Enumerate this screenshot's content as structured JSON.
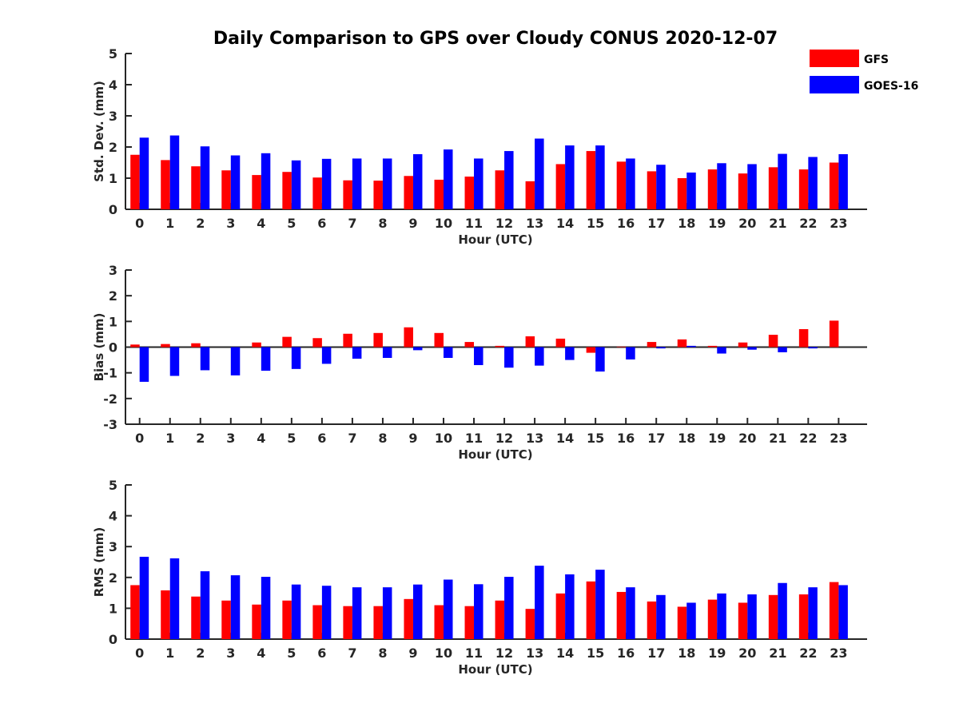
{
  "title": "Daily Comparison to GPS over Cloudy CONUS 2020-12-07",
  "legend": {
    "placement": "top-right",
    "entries": [
      {
        "name": "GFS",
        "color": "#ff0000"
      },
      {
        "name": "GOES-16",
        "color": "#0000ff"
      }
    ]
  },
  "chart_data": [
    {
      "type": "bar",
      "xlabel": "Hour (UTC)",
      "ylabel": "Std. Dev. (mm)",
      "ylim": [
        0,
        5
      ],
      "yticks": [
        "0",
        "1",
        "2",
        "3",
        "4",
        "5"
      ],
      "categories": [
        "0",
        "1",
        "2",
        "3",
        "4",
        "5",
        "6",
        "7",
        "8",
        "9",
        "10",
        "11",
        "12",
        "13",
        "14",
        "15",
        "16",
        "17",
        "18",
        "19",
        "20",
        "21",
        "22",
        "23"
      ],
      "series": [
        {
          "name": "GFS",
          "color": "#ff0000",
          "values": [
            1.75,
            1.58,
            1.38,
            1.25,
            1.1,
            1.2,
            1.02,
            0.93,
            0.92,
            1.07,
            0.95,
            1.05,
            1.25,
            0.9,
            1.45,
            1.87,
            1.53,
            1.22,
            1.0,
            1.28,
            1.15,
            1.35,
            1.28,
            1.5
          ]
        },
        {
          "name": "GOES-16",
          "color": "#0000ff",
          "values": [
            2.3,
            2.37,
            2.02,
            1.73,
            1.8,
            1.57,
            1.62,
            1.63,
            1.63,
            1.77,
            1.92,
            1.63,
            1.87,
            2.27,
            2.05,
            2.05,
            1.63,
            1.43,
            1.18,
            1.48,
            1.45,
            1.78,
            1.68,
            1.77
          ]
        }
      ]
    },
    {
      "type": "bar",
      "xlabel": "Hour (UTC)",
      "ylabel": "Bias (mm)",
      "ylim": [
        -3,
        3
      ],
      "yticks": [
        "-3",
        "-2",
        "-1",
        "0",
        "1",
        "2",
        "3"
      ],
      "categories": [
        "0",
        "1",
        "2",
        "3",
        "4",
        "5",
        "6",
        "7",
        "8",
        "9",
        "10",
        "11",
        "12",
        "13",
        "14",
        "15",
        "16",
        "17",
        "18",
        "19",
        "20",
        "21",
        "22",
        "23"
      ],
      "series": [
        {
          "name": "GFS",
          "color": "#ff0000",
          "values": [
            0.1,
            0.12,
            0.15,
            0.0,
            0.18,
            0.4,
            0.35,
            0.52,
            0.55,
            0.77,
            0.55,
            0.2,
            0.05,
            0.42,
            0.33,
            -0.22,
            0.02,
            0.2,
            0.3,
            0.05,
            0.18,
            0.48,
            0.7,
            1.03
          ]
        },
        {
          "name": "GOES-16",
          "color": "#0000ff",
          "values": [
            -1.35,
            -1.12,
            -0.9,
            -1.1,
            -0.92,
            -0.85,
            -0.65,
            -0.45,
            -0.42,
            -0.12,
            -0.42,
            -0.7,
            -0.8,
            -0.72,
            -0.5,
            -0.95,
            -0.48,
            -0.05,
            0.05,
            -0.25,
            -0.1,
            -0.2,
            -0.05,
            0.0
          ]
        }
      ]
    },
    {
      "type": "bar",
      "xlabel": "Hour (UTC)",
      "ylabel": "RMS (mm)",
      "ylim": [
        0,
        5
      ],
      "yticks": [
        "0",
        "1",
        "2",
        "3",
        "4",
        "5"
      ],
      "categories": [
        "0",
        "1",
        "2",
        "3",
        "4",
        "5",
        "6",
        "7",
        "8",
        "9",
        "10",
        "11",
        "12",
        "13",
        "14",
        "15",
        "16",
        "17",
        "18",
        "19",
        "20",
        "21",
        "22",
        "23"
      ],
      "series": [
        {
          "name": "GFS",
          "color": "#ff0000",
          "values": [
            1.75,
            1.58,
            1.38,
            1.25,
            1.12,
            1.25,
            1.1,
            1.07,
            1.07,
            1.3,
            1.1,
            1.07,
            1.25,
            0.98,
            1.48,
            1.87,
            1.53,
            1.22,
            1.05,
            1.28,
            1.18,
            1.43,
            1.45,
            1.85
          ]
        },
        {
          "name": "GOES-16",
          "color": "#0000ff",
          "values": [
            2.67,
            2.62,
            2.2,
            2.07,
            2.02,
            1.77,
            1.73,
            1.68,
            1.68,
            1.77,
            1.93,
            1.78,
            2.02,
            2.38,
            2.1,
            2.25,
            1.68,
            1.43,
            1.18,
            1.48,
            1.45,
            1.82,
            1.68,
            1.75
          ]
        }
      ]
    }
  ]
}
